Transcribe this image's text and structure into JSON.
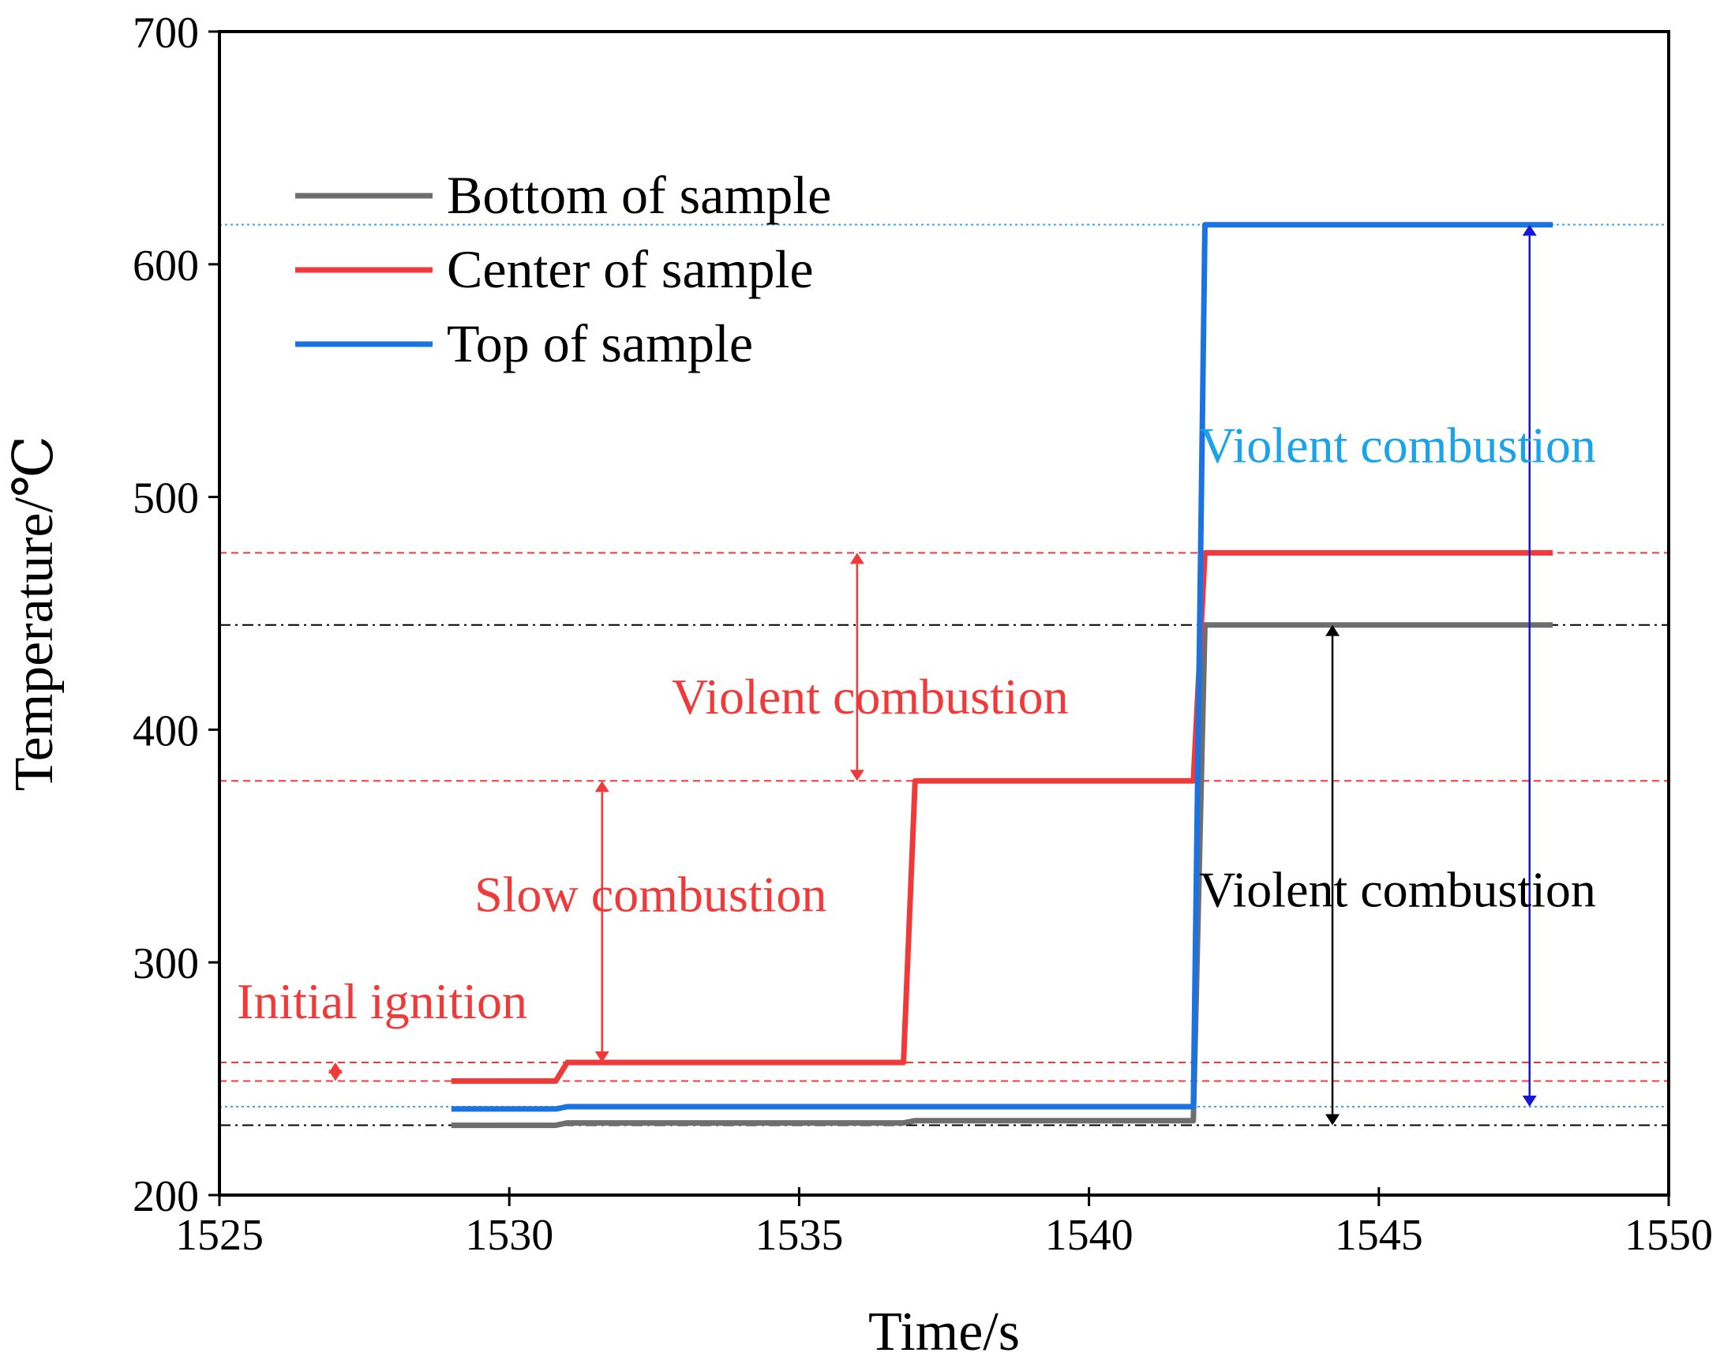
{
  "chart_data": {
    "type": "line",
    "xlabel": "Time/s",
    "ylabel": "Temperature/℃",
    "xlim": [
      1525,
      1550
    ],
    "ylim": [
      200,
      700
    ],
    "xticks": [
      1525,
      1530,
      1535,
      1540,
      1545,
      1550
    ],
    "yticks": [
      200,
      300,
      400,
      500,
      600,
      700
    ],
    "grid": false,
    "legend": {
      "placement": "top-left"
    },
    "series": [
      {
        "name": "Bottom of sample",
        "color": "#6e6e6e",
        "points": [
          [
            1529,
            230
          ],
          [
            1530.8,
            230
          ],
          [
            1531,
            231
          ],
          [
            1536.8,
            231
          ],
          [
            1537,
            232
          ],
          [
            1541.8,
            232
          ],
          [
            1542,
            445
          ],
          [
            1548,
            445
          ]
        ]
      },
      {
        "name": "Center of sample",
        "color": "#f03a3a",
        "points": [
          [
            1529,
            249
          ],
          [
            1530.8,
            249
          ],
          [
            1531,
            257
          ],
          [
            1536.8,
            257
          ],
          [
            1537,
            378
          ],
          [
            1541.8,
            378
          ],
          [
            1542,
            476
          ],
          [
            1548,
            476
          ]
        ]
      },
      {
        "name": "Top of sample",
        "color": "#1a73e0",
        "points": [
          [
            1529,
            237
          ],
          [
            1530.8,
            237
          ],
          [
            1531,
            238
          ],
          [
            1541.8,
            238
          ],
          [
            1542,
            617
          ],
          [
            1548,
            617
          ]
        ]
      }
    ],
    "reference_lines": [
      {
        "y": 617,
        "color": "#3ba6ee",
        "style": "dotted"
      },
      {
        "y": 476,
        "color": "#f03a3a",
        "style": "dashed"
      },
      {
        "y": 445,
        "color": "#000000",
        "style": "dashdot"
      },
      {
        "y": 378,
        "color": "#f03a3a",
        "style": "dashed"
      },
      {
        "y": 257,
        "color": "#f03a3a",
        "style": "dashed"
      },
      {
        "y": 249,
        "color": "#f03a3a",
        "style": "dashed"
      },
      {
        "y": 238,
        "color": "#3ba6ee",
        "style": "dotted"
      },
      {
        "y": 230,
        "color": "#000000",
        "style": "dashdot"
      }
    ],
    "arrows": [
      {
        "x": 1527,
        "y1": 249,
        "y2": 257,
        "color": "#f03a3a"
      },
      {
        "x": 1531.6,
        "y1": 257,
        "y2": 378,
        "color": "#f03a3a"
      },
      {
        "x": 1536,
        "y1": 378,
        "y2": 476,
        "color": "#f03a3a"
      },
      {
        "x": 1544.2,
        "y1": 230,
        "y2": 445,
        "color": "#000000"
      },
      {
        "x": 1547.6,
        "y1": 238,
        "y2": 617,
        "color": "#1616d8"
      }
    ],
    "annotations": [
      {
        "text": "Initial ignition",
        "x": 1525.3,
        "y": 276,
        "color": "#f03a3a"
      },
      {
        "text": "Slow combustion",
        "x": 1529.4,
        "y": 322,
        "color": "#f03a3a"
      },
      {
        "text": "Violent combustion",
        "x": 1532.8,
        "y": 407,
        "color": "#f03a3a"
      },
      {
        "text": "Violent combustion",
        "x": 1541.9,
        "y": 324,
        "color": "#000000"
      },
      {
        "text": "Violent combustion",
        "x": 1541.9,
        "y": 515,
        "color": "#1aa3e8"
      }
    ]
  }
}
